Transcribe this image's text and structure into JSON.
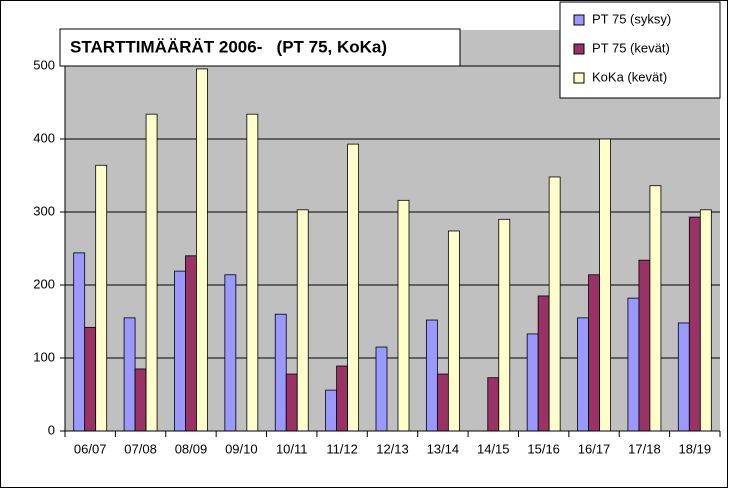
{
  "chart_data": {
    "type": "bar",
    "title": "STARTTIMÄÄRÄT 2006-   (PT 75, KoKa)",
    "categories": [
      "06/07",
      "07/08",
      "08/09",
      "09/10",
      "10/11",
      "11/12",
      "12/13",
      "13/14",
      "14/15",
      "15/16",
      "16/17",
      "17/18",
      "18/19"
    ],
    "series": [
      {
        "name": "PT 75 (syksy)",
        "color": "#9999ff",
        "values": [
          244,
          155,
          219,
          214,
          160,
          56,
          115,
          152,
          null,
          133,
          155,
          182,
          148
        ]
      },
      {
        "name": "PT 75 (kevät)",
        "color": "#993366",
        "values": [
          142,
          85,
          240,
          null,
          78,
          89,
          null,
          78,
          73,
          185,
          214,
          234,
          293
        ]
      },
      {
        "name": "KoKa (kevät)",
        "color": "#ffffcc",
        "values": [
          364,
          434,
          496,
          434,
          303,
          393,
          316,
          274,
          290,
          348,
          400,
          336,
          303
        ]
      }
    ],
    "ylim": [
      0,
      500
    ],
    "yticks": [
      0,
      100,
      200,
      300,
      400,
      500
    ],
    "grid": true,
    "legend": "top-right"
  }
}
